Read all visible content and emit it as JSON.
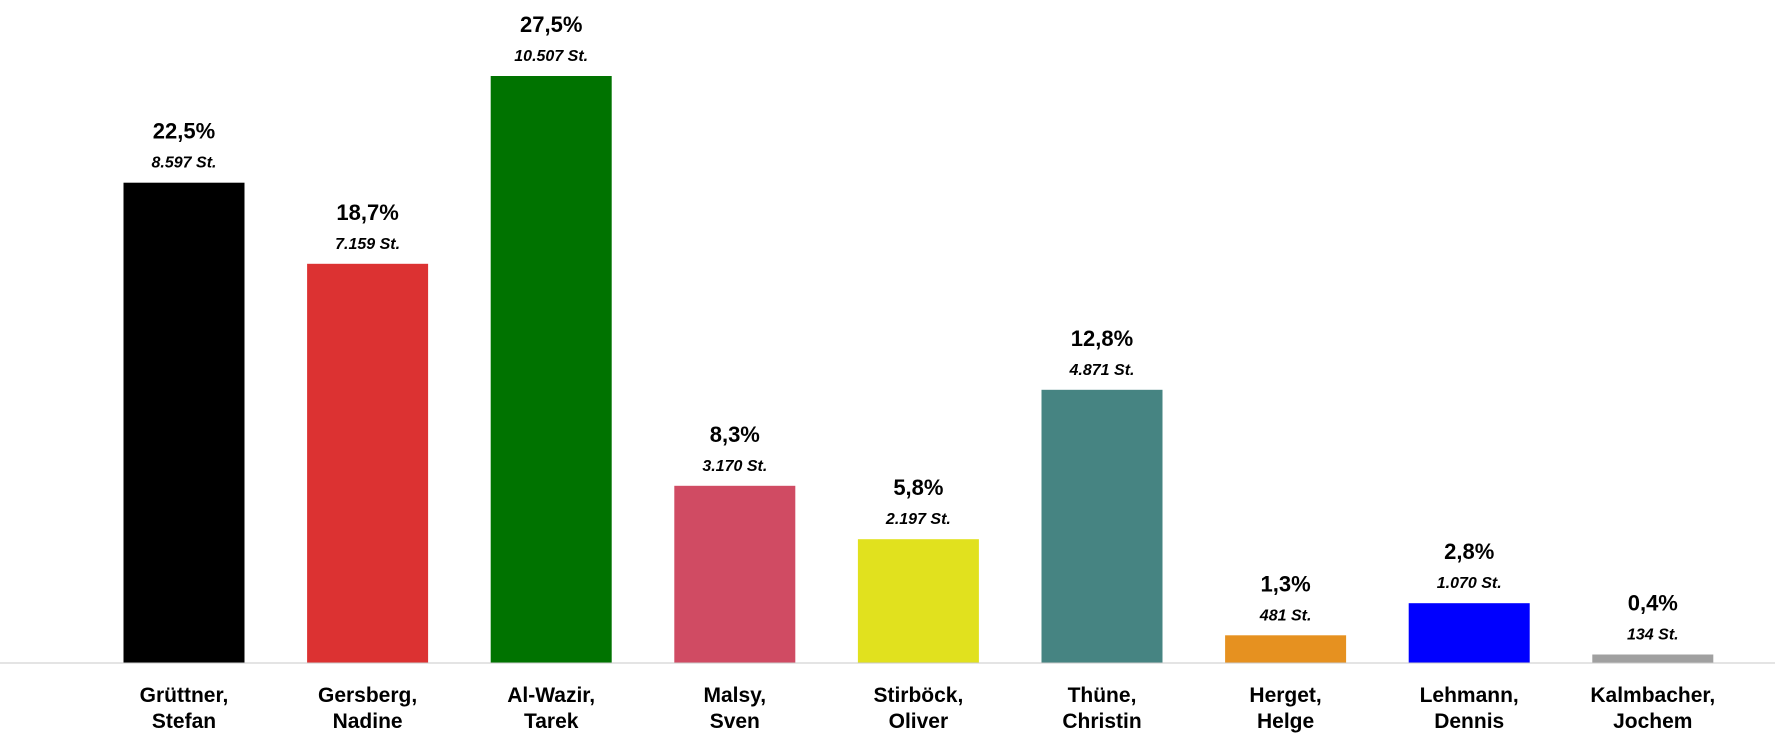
{
  "chart_data": {
    "type": "bar",
    "title": "",
    "xlabel": "",
    "ylabel": "",
    "ylim": [
      0,
      30
    ],
    "grid": false,
    "legend": "none",
    "series": [
      {
        "values": [
          22.5,
          18.7,
          27.5,
          8.3,
          5.8,
          12.8,
          1.3,
          2.8,
          0.4
        ]
      }
    ],
    "bars": [
      {
        "name_line1": "Grüttner,",
        "name_line2": "Stefan",
        "value": 22.5,
        "pct_label": "22,5%",
        "votes_label": "8.597 St.",
        "color": "#000000"
      },
      {
        "name_line1": "Gersberg,",
        "name_line2": "Nadine",
        "value": 18.7,
        "pct_label": "18,7%",
        "votes_label": "7.159 St.",
        "color": "#dc3232"
      },
      {
        "name_line1": "Al-Wazir,",
        "name_line2": "Tarek",
        "value": 27.5,
        "pct_label": "27,5%",
        "votes_label": "10.507 St.",
        "color": "#007300"
      },
      {
        "name_line1": "Malsy,",
        "name_line2": "Sven",
        "value": 8.3,
        "pct_label": "8,3%",
        "votes_label": "3.170 St.",
        "color": "#d04b63"
      },
      {
        "name_line1": "Stirböck,",
        "name_line2": "Oliver",
        "value": 5.8,
        "pct_label": "5,8%",
        "votes_label": "2.197 St.",
        "color": "#e1e11e"
      },
      {
        "name_line1": "Thüne,",
        "name_line2": "Christin",
        "value": 12.8,
        "pct_label": "12,8%",
        "votes_label": "4.871 St.",
        "color": "#468482"
      },
      {
        "name_line1": "Herget,",
        "name_line2": "Helge",
        "value": 1.3,
        "pct_label": "1,3%",
        "votes_label": "481 St.",
        "color": "#e69120"
      },
      {
        "name_line1": "Lehmann,",
        "name_line2": "Dennis",
        "value": 2.8,
        "pct_label": "2,8%",
        "votes_label": "1.070 St.",
        "color": "#0000ff"
      },
      {
        "name_line1": "Kalmbacher,",
        "name_line2": "Jochem",
        "value": 0.4,
        "pct_label": "0,4%",
        "votes_label": "134 St.",
        "color": "#a0a0a0"
      }
    ],
    "axis_color": "#c8c8c8"
  }
}
